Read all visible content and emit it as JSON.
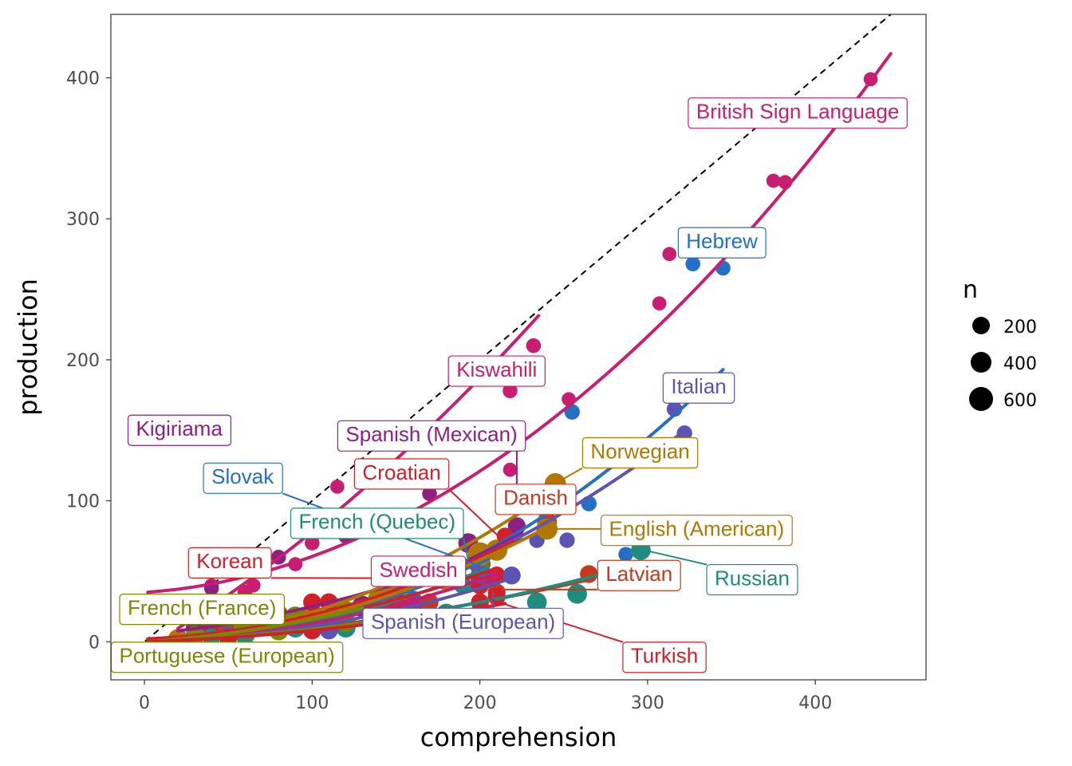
{
  "chart_data": {
    "type": "scatter",
    "xlabel": "comprehension",
    "ylabel": "production",
    "xlim": [
      -20,
      466
    ],
    "ylim": [
      -27,
      445
    ],
    "xticks": [
      0,
      100,
      200,
      300,
      400
    ],
    "yticks": [
      0,
      100,
      200,
      300,
      400
    ],
    "grid": false,
    "reference_line": {
      "slope": 1,
      "intercept": 0,
      "style": "dashed"
    },
    "size_legend": {
      "title": "n",
      "position": "right",
      "entries": [
        "200",
        "400",
        "600"
      ],
      "values": [
        200,
        400,
        600
      ]
    },
    "series": [
      {
        "name": "British Sign Language",
        "color": "#C81E72",
        "points": [
          [
            40,
            40,
            60
          ],
          [
            65,
            40,
            60
          ],
          [
            90,
            55,
            60
          ],
          [
            115,
            110,
            60
          ],
          [
            175,
            145,
            60
          ],
          [
            195,
            140,
            60
          ],
          [
            218,
            122,
            60
          ],
          [
            253,
            172,
            60
          ],
          [
            307,
            240,
            60
          ],
          [
            313,
            275,
            60
          ],
          [
            375,
            327,
            60
          ],
          [
            382,
            326,
            60
          ],
          [
            433,
            399,
            60
          ],
          [
            444,
            377,
            60
          ]
        ],
        "curve": {
          "x": [
            2,
            445
          ],
          "a": 35,
          "b": 0.08,
          "c": 0.00175
        }
      },
      {
        "name": "Hebrew",
        "color": "#2370C5",
        "points": [
          [
            50,
            5,
            120
          ],
          [
            100,
            10,
            150
          ],
          [
            150,
            28,
            150
          ],
          [
            200,
            60,
            150
          ],
          [
            255,
            163,
            100
          ],
          [
            265,
            98,
            100
          ],
          [
            287,
            62,
            80
          ],
          [
            327,
            268,
            80
          ],
          [
            345,
            265,
            80
          ]
        ],
        "curve": {
          "x": [
            2,
            345
          ],
          "a": 2,
          "b": -0.05,
          "c": 0.00175
        }
      },
      {
        "name": "Kiswahili",
        "color": "#C81E72",
        "points": [
          [
            60,
            35,
            80
          ],
          [
            100,
            70,
            80
          ],
          [
            150,
            115,
            80
          ],
          [
            218,
            178,
            80
          ],
          [
            232,
            210,
            80
          ]
        ],
        "curve": {
          "x": [
            20,
            235
          ],
          "a": -5,
          "b": 0.7,
          "c": 0.0013
        }
      },
      {
        "name": "Kigiriama",
        "color": "#8B2087",
        "points": [
          [
            40,
            38,
            80
          ],
          [
            80,
            60,
            80
          ],
          [
            120,
            75,
            80
          ],
          [
            170,
            105,
            80
          ],
          [
            197,
            142,
            80
          ]
        ],
        "curve": {
          "x": [
            20,
            225
          ],
          "a": 5,
          "b": 0.12,
          "c": 0.0008
        }
      },
      {
        "name": "Spanish (Mexican)",
        "color": "#8B2087",
        "points": [
          [
            30,
            10,
            200
          ],
          [
            80,
            15,
            300
          ],
          [
            130,
            25,
            400
          ],
          [
            160,
            45,
            300
          ],
          [
            193,
            70,
            300
          ],
          [
            222,
            82,
            200
          ]
        ],
        "curve": {
          "x": [
            2,
            225
          ],
          "a": 0,
          "b": 0.05,
          "c": 0.0013
        }
      },
      {
        "name": "Italian",
        "color": "#5B54B3",
        "points": [
          [
            50,
            5,
            200
          ],
          [
            100,
            10,
            300
          ],
          [
            150,
            20,
            300
          ],
          [
            200,
            45,
            250
          ],
          [
            234,
            72,
            100
          ],
          [
            252,
            72,
            100
          ],
          [
            316,
            165,
            100
          ],
          [
            322,
            148,
            100
          ]
        ],
        "curve": {
          "x": [
            2,
            322
          ],
          "a": 0,
          "b": 0.03,
          "c": 0.00135
        }
      },
      {
        "name": "Norwegian",
        "color": "#B07800",
        "points": [
          [
            40,
            5,
            300
          ],
          [
            90,
            12,
            400
          ],
          [
            140,
            30,
            500
          ],
          [
            180,
            45,
            600
          ],
          [
            210,
            65,
            400
          ],
          [
            245,
            112,
            400
          ]
        ],
        "curve": {
          "x": [
            2,
            250
          ],
          "a": 0,
          "b": 0.05,
          "c": 0.0016
        }
      },
      {
        "name": "Slovak",
        "color": "#2370C5",
        "points": [
          [
            60,
            8,
            200
          ],
          [
            110,
            15,
            200
          ],
          [
            160,
            30,
            200
          ],
          [
            200,
            48,
            200
          ]
        ],
        "curve": {
          "x": [
            2,
            205
          ],
          "a": 0,
          "b": 0.04,
          "c": 0.0012
        }
      },
      {
        "name": "Croatian",
        "color": "#D1202A",
        "points": [
          [
            40,
            10,
            150
          ],
          [
            80,
            20,
            200
          ],
          [
            110,
            28,
            200
          ],
          [
            160,
            45,
            150
          ],
          [
            200,
            60,
            150
          ],
          [
            215,
            75,
            150
          ]
        ],
        "curve": {
          "x": [
            2,
            220
          ],
          "a": 2,
          "b": 0.05,
          "c": 0.0012
        }
      },
      {
        "name": "Danish",
        "color": "#C8381E",
        "points": [
          [
            50,
            8,
            300
          ],
          [
            100,
            15,
            400
          ],
          [
            150,
            35,
            400
          ],
          [
            200,
            55,
            400
          ],
          [
            240,
            85,
            300
          ]
        ],
        "curve": {
          "x": [
            2,
            245
          ],
          "a": 0,
          "b": 0.05,
          "c": 0.0012
        }
      },
      {
        "name": "French (Quebec)",
        "color": "#1E8C7E",
        "points": [
          [
            40,
            3,
            200
          ],
          [
            90,
            10,
            300
          ],
          [
            140,
            20,
            300
          ],
          [
            190,
            40,
            200
          ],
          [
            200,
            56,
            200
          ]
        ],
        "curve": {
          "x": [
            2,
            205
          ],
          "a": 0,
          "b": 0.03,
          "c": 0.0011
        }
      },
      {
        "name": "English (American)",
        "color": "#B07800",
        "points": [
          [
            20,
            2,
            300
          ],
          [
            60,
            10,
            500
          ],
          [
            100,
            18,
            600
          ],
          [
            150,
            35,
            600
          ],
          [
            200,
            62,
            600
          ],
          [
            240,
            80,
            400
          ]
        ],
        "curve": {
          "x": [
            2,
            245
          ],
          "a": 0,
          "b": 0.05,
          "c": 0.0012
        }
      },
      {
        "name": "Korean",
        "color": "#D1202A",
        "points": [
          [
            50,
            5,
            200
          ],
          [
            100,
            28,
            200
          ],
          [
            110,
            28,
            200
          ],
          [
            150,
            30,
            200
          ],
          [
            200,
            40,
            200
          ],
          [
            210,
            47,
            200
          ]
        ],
        "curve": {
          "x": [
            2,
            210
          ],
          "a": 0,
          "b": 0.08,
          "c": 0.0008
        }
      },
      {
        "name": "Swedish",
        "color": "#C81E72",
        "points": [
          [
            60,
            5,
            200
          ],
          [
            110,
            10,
            300
          ],
          [
            160,
            25,
            300
          ],
          [
            205,
            45,
            300
          ]
        ],
        "curve": {
          "x": [
            2,
            210
          ],
          "a": 0,
          "b": 0.04,
          "c": 0.0009
        }
      },
      {
        "name": "Latvian",
        "color": "#C8381E",
        "points": [
          [
            60,
            5,
            200
          ],
          [
            110,
            12,
            200
          ],
          [
            170,
            28,
            200
          ],
          [
            210,
            35,
            200
          ],
          [
            265,
            48,
            200
          ]
        ],
        "curve": {
          "x": [
            2,
            268
          ],
          "a": 0,
          "b": 0.06,
          "c": 0.0004
        }
      },
      {
        "name": "Russian",
        "color": "#1E8C7E",
        "points": [
          [
            60,
            5,
            300
          ],
          [
            120,
            10,
            300
          ],
          [
            180,
            20,
            300
          ],
          [
            234,
            28,
            300
          ],
          [
            258,
            34,
            300
          ],
          [
            296,
            65,
            300
          ]
        ],
        "curve": {
          "x": [
            2,
            300
          ],
          "a": 0,
          "b": 0.04,
          "c": 0.0005
        }
      },
      {
        "name": "French (France)",
        "color": "#7A8A00",
        "points": [
          [
            30,
            5,
            200
          ],
          [
            60,
            10,
            300
          ],
          [
            90,
            18,
            300
          ],
          [
            120,
            22,
            300
          ]
        ],
        "curve": {
          "x": [
            2,
            130
          ],
          "a": 0,
          "b": 0.08,
          "c": 0.0008
        }
      },
      {
        "name": "Spanish (European)",
        "color": "#5B54B3",
        "points": [
          [
            50,
            5,
            200
          ],
          [
            110,
            8,
            200
          ],
          [
            160,
            15,
            200
          ],
          [
            200,
            48,
            200
          ],
          [
            219,
            47,
            200
          ]
        ],
        "curve": {
          "x": [
            2,
            220
          ],
          "a": 0,
          "b": 0.03,
          "c": 0.0008
        }
      },
      {
        "name": "Portuguese (European)",
        "color": "#7A8A00",
        "points": [
          [
            30,
            3,
            200
          ],
          [
            80,
            8,
            300
          ],
          [
            120,
            14,
            300
          ],
          [
            140,
            15,
            300
          ]
        ],
        "curve": {
          "x": [
            2,
            145
          ],
          "a": 0,
          "b": 0.05,
          "c": 0.0004
        }
      },
      {
        "name": "Turkish",
        "color": "#D1202A",
        "points": [
          [
            50,
            3,
            200
          ],
          [
            100,
            8,
            200
          ],
          [
            150,
            15,
            200
          ],
          [
            200,
            28,
            200
          ],
          [
            210,
            32,
            200
          ]
        ],
        "curve": {
          "x": [
            2,
            215
          ],
          "a": 0,
          "b": 0.04,
          "c": 0.0004
        }
      }
    ],
    "labels": [
      {
        "text": "British Sign Language",
        "x": 329,
        "y": 375,
        "color": "#C81E72",
        "anchor": [
          418,
          376
        ]
      },
      {
        "text": "Hebrew",
        "x": 323,
        "y": 283,
        "color": "#2370C5",
        "anchor": null
      },
      {
        "text": "Kiswahili",
        "x": 186,
        "y": 192,
        "color": "#C81E72",
        "anchor": null
      },
      {
        "text": "Italian",
        "x": 314,
        "y": 180,
        "color": "#5B54B3",
        "anchor": null
      },
      {
        "text": "Kigiriama",
        "x": -5,
        "y": 150,
        "color": "#8B2087",
        "anchor": [
          48,
          142
        ]
      },
      {
        "text": "Spanish (Mexican)",
        "x": 120,
        "y": 146,
        "color": "#8B2087",
        "anchor": [
          222,
          94
        ]
      },
      {
        "text": "Norwegian",
        "x": 266,
        "y": 134,
        "color": "#B07800",
        "anchor": [
          246,
          113
        ]
      },
      {
        "text": "Slovak",
        "x": 40,
        "y": 116,
        "color": "#2370C5",
        "anchor": [
          197,
          55
        ]
      },
      {
        "text": "Croatian",
        "x": 130,
        "y": 119,
        "color": "#D1202A",
        "anchor": [
          211,
          75
        ]
      },
      {
        "text": "Danish",
        "x": 214,
        "y": 101,
        "color": "#C8381E",
        "anchor": [
          246,
          90
        ]
      },
      {
        "text": "French (Quebec)",
        "x": 92,
        "y": 84,
        "color": "#1E8C7E",
        "anchor": [
          193,
          58
        ]
      },
      {
        "text": "English (American)",
        "x": 277,
        "y": 79,
        "color": "#B07800",
        "anchor": [
          240,
          80
        ]
      },
      {
        "text": "Korean",
        "x": 31,
        "y": 56,
        "color": "#D1202A",
        "anchor": [
          208,
          45
        ]
      },
      {
        "text": "Swedish",
        "x": 140,
        "y": 50,
        "color": "#C81E72",
        "anchor": null
      },
      {
        "text": "Latvian",
        "x": 275,
        "y": 47,
        "color": "#C8381E",
        "anchor": [
          213,
          37
        ]
      },
      {
        "text": "Russian",
        "x": 340,
        "y": 44,
        "color": "#1E8C7E",
        "anchor": [
          298,
          65
        ]
      },
      {
        "text": "French (France)",
        "x": -10,
        "y": 23,
        "color": "#7A8A00",
        "anchor": [
          75,
          18
        ]
      },
      {
        "text": "Spanish (European)",
        "x": 135,
        "y": 13,
        "color": "#5B54B3",
        "anchor": [
          208,
          35
        ]
      },
      {
        "text": "Portuguese (European)",
        "x": -15,
        "y": -11,
        "color": "#7A8A00",
        "anchor": null
      },
      {
        "text": "Turkish",
        "x": 290,
        "y": -11,
        "color": "#D1202A",
        "anchor": [
          206,
          30
        ]
      }
    ]
  }
}
